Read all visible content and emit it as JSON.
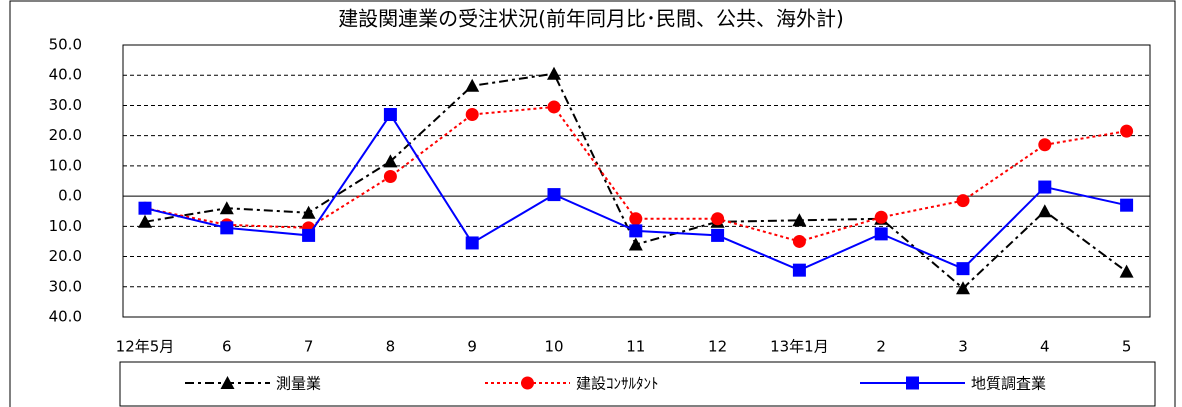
{
  "chart_data": {
    "type": "line",
    "title": "建設関連業の受注状況(前年同月比･民間、公共、海外計)",
    "categories": [
      "12年5月",
      "6",
      "7",
      "8",
      "9",
      "10",
      "11",
      "12",
      "13年1月",
      "2",
      "3",
      "4",
      "5"
    ],
    "series": [
      {
        "name": "測量業",
        "color": "#000000",
        "line_style": "dashdot",
        "marker": "triangle",
        "values": [
          -8.5,
          -4,
          -5.5,
          11.5,
          36.5,
          40.5,
          -16,
          -8.5,
          -8,
          -7.5,
          -30.5,
          -5,
          -25
        ]
      },
      {
        "name": "建設ｺﾝｻﾙﾀﾝﾄ",
        "color": "#ff0000",
        "line_style": "dotted",
        "marker": "circle",
        "values": [
          -4,
          -9.5,
          -10.5,
          6.5,
          27,
          29.5,
          -7.5,
          -7.5,
          -15,
          -7,
          -1.5,
          17,
          21.5
        ]
      },
      {
        "name": "地質調査業",
        "color": "#0000ff",
        "line_style": "solid",
        "marker": "square",
        "values": [
          -4,
          -10.5,
          -13,
          27,
          -15.5,
          0.5,
          -11.5,
          -13,
          -24.5,
          -12.5,
          -24,
          3,
          -3
        ]
      }
    ],
    "ylim": [
      -40,
      50
    ],
    "yticks": [
      {
        "value": 50,
        "label": "50.0"
      },
      {
        "value": 40,
        "label": "40.0"
      },
      {
        "value": 30,
        "label": "30.0"
      },
      {
        "value": 20,
        "label": "20.0"
      },
      {
        "value": 10,
        "label": "10.0"
      },
      {
        "value": 0,
        "label": "0.0"
      },
      {
        "value": -10,
        "label": "10.0"
      },
      {
        "value": -20,
        "label": "20.0"
      },
      {
        "value": -30,
        "label": "30.0"
      },
      {
        "value": -40,
        "label": "40.0"
      }
    ],
    "grid": true
  }
}
